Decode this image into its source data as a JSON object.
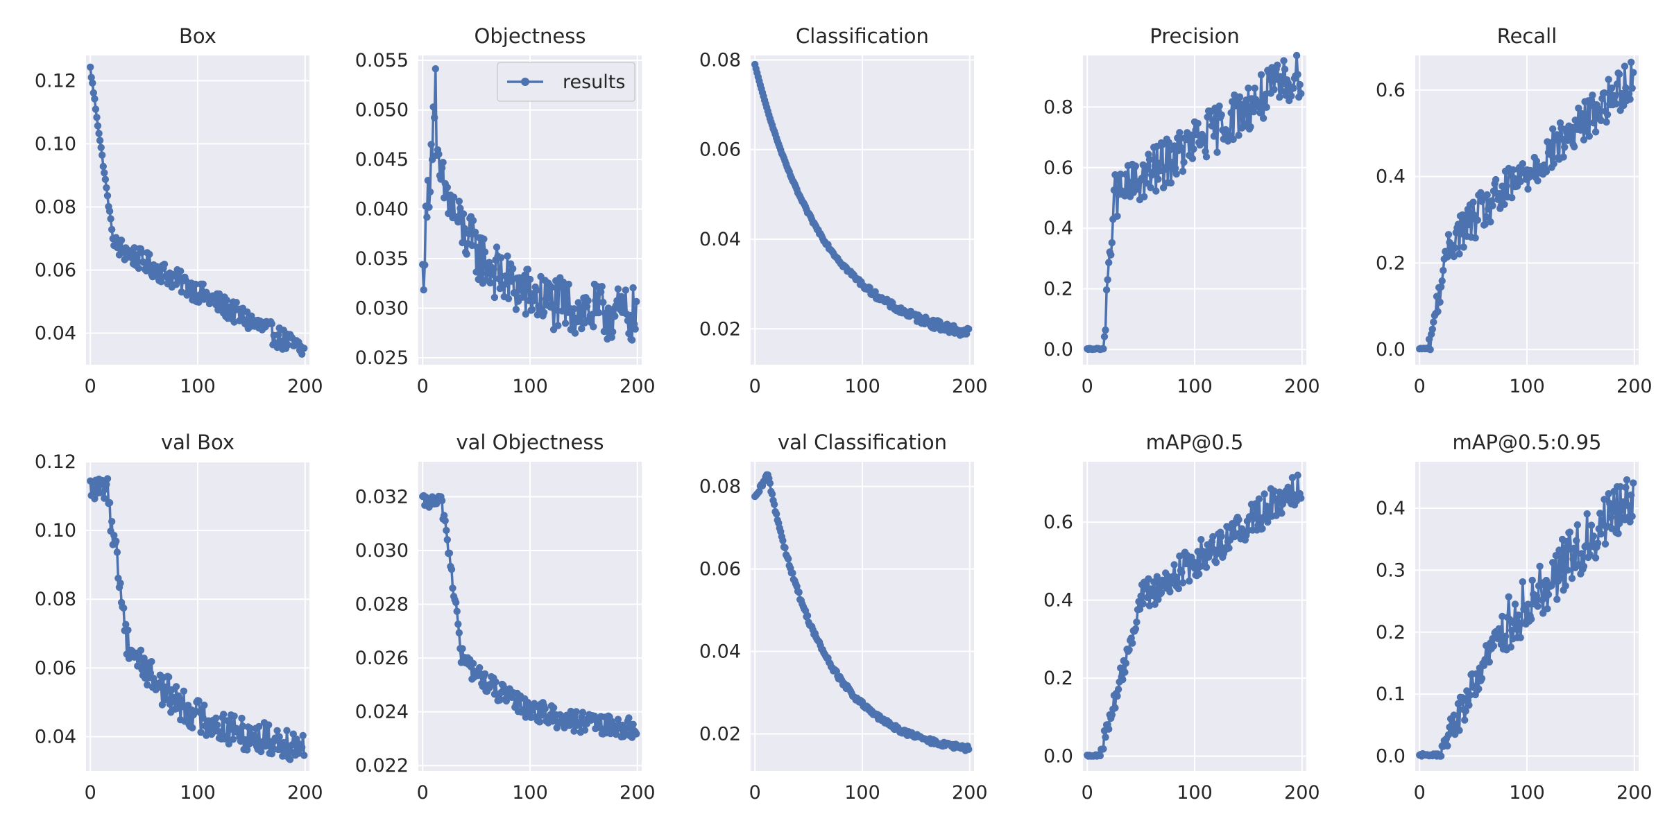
{
  "figure": {
    "background": "#ffffff",
    "plot_background": "#eaeaf2",
    "grid_color": "#ffffff",
    "series_color": "#4c72b0"
  },
  "chart_data": [
    {
      "type": "line",
      "title": "Box",
      "xlim": [
        -4,
        204
      ],
      "ylim": [
        0.03,
        0.128
      ],
      "xticks": [
        0,
        100,
        200
      ],
      "xtick_labels": [
        "0",
        "100",
        "200"
      ],
      "yticks": [
        0.04,
        0.06,
        0.08,
        0.1,
        0.12
      ],
      "ytick_labels": [
        "0.04",
        "0.06",
        "0.08",
        "0.10",
        "0.12"
      ],
      "series": [
        {
          "name": "results",
          "shape": "decay",
          "start": 0.124,
          "mid": 0.068,
          "end": 0.034,
          "knee": 22,
          "noise": 0.0035,
          "epochs": 200
        }
      ]
    },
    {
      "type": "line",
      "title": "Objectness",
      "xlim": [
        -4,
        204
      ],
      "ylim": [
        0.0243,
        0.0555
      ],
      "xticks": [
        0,
        100,
        200
      ],
      "xtick_labels": [
        "0",
        "100",
        "200"
      ],
      "yticks": [
        0.025,
        0.03,
        0.035,
        0.04,
        0.045,
        0.05,
        0.055
      ],
      "ytick_labels": [
        "0.025",
        "0.030",
        "0.035",
        "0.040",
        "0.045",
        "0.050",
        "0.055"
      ],
      "legend": {
        "label": "results",
        "position": "upper right"
      },
      "series": [
        {
          "name": "results",
          "shape": "spike",
          "start": 0.033,
          "peak": 0.054,
          "peak_at": 13,
          "end": 0.029,
          "noise": 0.0028,
          "epochs": 200
        }
      ]
    },
    {
      "type": "line",
      "title": "Classification",
      "xlim": [
        -4,
        204
      ],
      "ylim": [
        0.012,
        0.081
      ],
      "xticks": [
        0,
        100,
        200
      ],
      "xtick_labels": [
        "0",
        "100",
        "200"
      ],
      "yticks": [
        0.02,
        0.04,
        0.06,
        0.08
      ],
      "ytick_labels": [
        "0.02",
        "0.04",
        "0.06",
        "0.08"
      ],
      "series": [
        {
          "name": "results",
          "shape": "smooth-decay",
          "start": 0.079,
          "end": 0.016,
          "noise": 0.0012,
          "epochs": 200
        }
      ]
    },
    {
      "type": "line",
      "title": "Precision",
      "xlim": [
        -4,
        204
      ],
      "ylim": [
        -0.05,
        0.97
      ],
      "xticks": [
        0,
        100,
        200
      ],
      "xtick_labels": [
        "0",
        "100",
        "200"
      ],
      "yticks": [
        0.0,
        0.2,
        0.4,
        0.6,
        0.8
      ],
      "ytick_labels": [
        "0.0",
        "0.2",
        "0.4",
        "0.6",
        "0.8"
      ],
      "series": [
        {
          "name": "results",
          "shape": "rise",
          "start": 0.0,
          "flat_until": 15,
          "knee_value": 0.5,
          "knee_at": 25,
          "end": 0.92,
          "noise": 0.08,
          "epochs": 200
        }
      ]
    },
    {
      "type": "line",
      "title": "Recall",
      "xlim": [
        -4,
        204
      ],
      "ylim": [
        -0.035,
        0.68
      ],
      "xticks": [
        0,
        100,
        200
      ],
      "xtick_labels": [
        "0",
        "100",
        "200"
      ],
      "yticks": [
        0.0,
        0.2,
        0.4,
        0.6
      ],
      "ytick_labels": [
        "0.0",
        "0.2",
        "0.4",
        "0.6"
      ],
      "series": [
        {
          "name": "results",
          "shape": "rise",
          "start": 0.0,
          "flat_until": 8,
          "knee_value": 0.25,
          "knee_at": 28,
          "end": 0.63,
          "noise": 0.05,
          "epochs": 200
        }
      ]
    },
    {
      "type": "line",
      "title": "val Box",
      "xlim": [
        -4,
        204
      ],
      "ylim": [
        0.03,
        0.12
      ],
      "xticks": [
        0,
        100,
        200
      ],
      "xtick_labels": [
        "0",
        "100",
        "200"
      ],
      "yticks": [
        0.04,
        0.06,
        0.08,
        0.1,
        0.12
      ],
      "ytick_labels": [
        "0.04",
        "0.06",
        "0.08",
        "0.10",
        "0.12"
      ],
      "series": [
        {
          "name": "results",
          "shape": "drop-decay",
          "start": 0.112,
          "hold_until": 15,
          "mid": 0.068,
          "end": 0.036,
          "noise": 0.005,
          "epochs": 200
        }
      ]
    },
    {
      "type": "line",
      "title": "val Objectness",
      "xlim": [
        -4,
        204
      ],
      "ylim": [
        0.0218,
        0.0333
      ],
      "xticks": [
        0,
        100,
        200
      ],
      "xtick_labels": [
        "0",
        "100",
        "200"
      ],
      "yticks": [
        0.022,
        0.024,
        0.026,
        0.028,
        0.03,
        0.032
      ],
      "ytick_labels": [
        "0.022",
        "0.024",
        "0.026",
        "0.028",
        "0.030",
        "0.032"
      ],
      "series": [
        {
          "name": "results",
          "shape": "drop-decay",
          "start": 0.0318,
          "hold_until": 18,
          "mid": 0.026,
          "end": 0.0232,
          "noise": 0.0004,
          "epochs": 200
        }
      ]
    },
    {
      "type": "line",
      "title": "val Classification",
      "xlim": [
        -4,
        204
      ],
      "ylim": [
        0.011,
        0.086
      ],
      "xticks": [
        0,
        100,
        200
      ],
      "xtick_labels": [
        "0",
        "100",
        "200"
      ],
      "yticks": [
        0.02,
        0.04,
        0.06,
        0.08
      ],
      "ytick_labels": [
        "0.02",
        "0.04",
        "0.06",
        "0.08"
      ],
      "series": [
        {
          "name": "results",
          "shape": "bump-decay",
          "start": 0.077,
          "peak": 0.083,
          "peak_at": 12,
          "end": 0.0145,
          "noise": 0.0006,
          "epochs": 200
        }
      ]
    },
    {
      "type": "line",
      "title": "mAP@0.5",
      "xlim": [
        -4,
        204
      ],
      "ylim": [
        -0.038,
        0.755
      ],
      "xticks": [
        0,
        100,
        200
      ],
      "xtick_labels": [
        "0",
        "100",
        "200"
      ],
      "yticks": [
        0.0,
        0.2,
        0.4,
        0.6
      ],
      "ytick_labels": [
        "0.0",
        "0.2",
        "0.4",
        "0.6"
      ],
      "series": [
        {
          "name": "results",
          "shape": "rise",
          "start": 0.0,
          "flat_until": 12,
          "knee_value": 0.4,
          "knee_at": 50,
          "end": 0.7,
          "noise": 0.045,
          "epochs": 200
        }
      ]
    },
    {
      "type": "line",
      "title": "mAP@0.5:0.95",
      "xlim": [
        -4,
        204
      ],
      "ylim": [
        -0.024,
        0.475
      ],
      "xticks": [
        0,
        100,
        200
      ],
      "xtick_labels": [
        "0",
        "100",
        "200"
      ],
      "yticks": [
        0.0,
        0.1,
        0.2,
        0.3,
        0.4
      ],
      "ytick_labels": [
        "0.0",
        "0.1",
        "0.2",
        "0.3",
        "0.4"
      ],
      "series": [
        {
          "name": "results",
          "shape": "rise",
          "start": 0.0,
          "flat_until": 18,
          "knee_value": 0.2,
          "knee_at": 75,
          "end": 0.43,
          "noise": 0.045,
          "epochs": 200
        }
      ]
    }
  ]
}
